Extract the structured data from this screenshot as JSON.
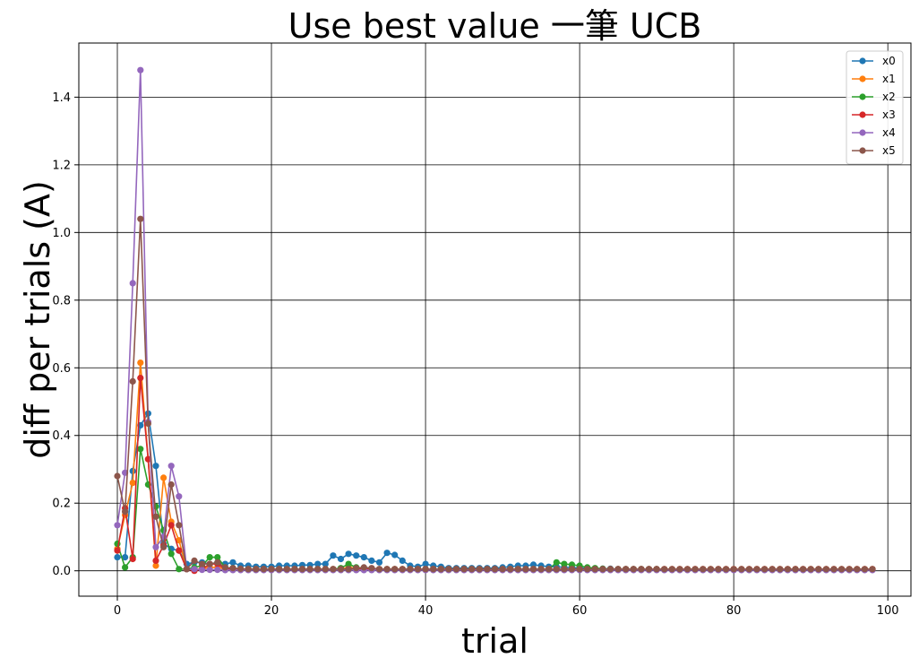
{
  "chart_data": {
    "type": "line",
    "title": "Use best value 一筆 UCB",
    "xlabel": "trial",
    "ylabel": "diff  per  trials (A)",
    "xlim": [
      -5,
      103
    ],
    "ylim": [
      -0.075,
      1.56
    ],
    "x_ticks": [
      0,
      20,
      40,
      60,
      80,
      100
    ],
    "y_ticks": [
      0.0,
      0.2,
      0.4,
      0.6,
      0.8,
      1.0,
      1.2,
      1.4
    ],
    "x_tick_labels": [
      "0",
      "20",
      "40",
      "60",
      "80",
      "100"
    ],
    "y_tick_labels": [
      "0.0",
      "0.2",
      "0.4",
      "0.6",
      "0.8",
      "1.0",
      "1.2",
      "1.4"
    ],
    "grid": true,
    "legend_position": "top-right",
    "x": [
      0,
      1,
      2,
      3,
      4,
      5,
      6,
      7,
      8,
      9,
      10,
      11,
      12,
      13,
      14,
      15,
      16,
      17,
      18,
      19,
      20,
      21,
      22,
      23,
      24,
      25,
      26,
      27,
      28,
      29,
      30,
      31,
      32,
      33,
      34,
      35,
      36,
      37,
      38,
      39,
      40,
      41,
      42,
      43,
      44,
      45,
      46,
      47,
      48,
      49,
      50,
      51,
      52,
      53,
      54,
      55,
      56,
      57,
      58,
      59,
      60,
      61,
      62,
      63,
      64,
      65,
      66,
      67,
      68,
      69,
      70,
      71,
      72,
      73,
      74,
      75,
      76,
      77,
      78,
      79,
      80,
      81,
      82,
      83,
      84,
      85,
      86,
      87,
      88,
      89,
      90,
      91,
      92,
      93,
      94,
      95,
      96,
      97,
      98
    ],
    "series": [
      {
        "name": "x0",
        "color": "#1f77b4",
        "values": [
          0.04,
          0.04,
          0.295,
          0.43,
          0.465,
          0.31,
          0.08,
          0.065,
          0.06,
          0.02,
          0.025,
          0.025,
          0.02,
          0.025,
          0.02,
          0.025,
          0.015,
          0.015,
          0.012,
          0.012,
          0.012,
          0.015,
          0.015,
          0.015,
          0.017,
          0.017,
          0.02,
          0.02,
          0.045,
          0.035,
          0.05,
          0.045,
          0.04,
          0.03,
          0.025,
          0.053,
          0.047,
          0.03,
          0.015,
          0.012,
          0.02,
          0.015,
          0.012,
          0.008,
          0.008,
          0.008,
          0.008,
          0.008,
          0.008,
          0.008,
          0.01,
          0.012,
          0.015,
          0.015,
          0.018,
          0.015,
          0.012,
          0.012,
          0.01,
          0.01,
          0.008,
          0.008,
          0.007,
          0.006,
          0.006,
          0.005,
          0.005,
          0.005,
          0.005,
          0.005,
          0.005,
          0.004,
          0.004,
          0.004,
          0.004,
          0.004,
          0.004,
          0.004,
          0.004,
          0.004,
          0.003,
          0.003,
          0.003,
          0.003,
          0.003,
          0.003,
          0.003,
          0.003,
          0.003,
          0.003,
          0.003,
          0.003,
          0.003,
          0.003,
          0.003,
          0.003,
          0.003,
          0.003,
          0.003
        ]
      },
      {
        "name": "x1",
        "color": "#ff7f0e",
        "values": [
          0.065,
          0.165,
          0.26,
          0.615,
          0.33,
          0.015,
          0.275,
          0.145,
          0.09,
          0.005,
          0.005,
          0.005,
          0.01,
          0.01,
          0.005,
          0.005,
          0.005,
          0.005,
          0.005,
          0.005,
          0.005,
          0.005,
          0.005,
          0.005,
          0.005,
          0.005,
          0.005,
          0.005,
          0.005,
          0.005,
          0.01,
          0.008,
          0.008,
          0.005,
          0.005,
          0.005,
          0.005,
          0.005,
          0.005,
          0.005,
          0.005,
          0.005,
          0.005,
          0.005,
          0.005,
          0.005,
          0.005,
          0.005,
          0.005,
          0.005,
          0.005,
          0.005,
          0.005,
          0.005,
          0.005,
          0.005,
          0.005,
          0.005,
          0.005,
          0.005,
          0.005,
          0.005,
          0.005,
          0.005,
          0.005,
          0.005,
          0.005,
          0.005,
          0.005,
          0.005,
          0.005,
          0.005,
          0.005,
          0.005,
          0.005,
          0.005,
          0.005,
          0.005,
          0.005,
          0.005,
          0.005,
          0.005,
          0.005,
          0.005,
          0.005,
          0.005,
          0.005,
          0.005,
          0.005,
          0.005,
          0.005,
          0.005,
          0.005,
          0.005,
          0.005,
          0.005,
          0.005,
          0.005,
          0.005
        ]
      },
      {
        "name": "x2",
        "color": "#2ca02c",
        "values": [
          0.08,
          0.01,
          0.04,
          0.36,
          0.255,
          0.19,
          0.12,
          0.05,
          0.005,
          0.005,
          0.01,
          0.015,
          0.04,
          0.04,
          0.01,
          0.008,
          0.005,
          0.005,
          0.005,
          0.005,
          0.005,
          0.005,
          0.005,
          0.005,
          0.005,
          0.005,
          0.005,
          0.005,
          0.005,
          0.008,
          0.02,
          0.01,
          0.008,
          0.006,
          0.005,
          0.005,
          0.005,
          0.005,
          0.005,
          0.005,
          0.005,
          0.005,
          0.005,
          0.005,
          0.005,
          0.005,
          0.005,
          0.005,
          0.005,
          0.005,
          0.005,
          0.005,
          0.005,
          0.005,
          0.005,
          0.005,
          0.005,
          0.025,
          0.02,
          0.018,
          0.015,
          0.01,
          0.008,
          0.006,
          0.005,
          0.005,
          0.005,
          0.005,
          0.005,
          0.005,
          0.005,
          0.004,
          0.004,
          0.004,
          0.004,
          0.004,
          0.004,
          0.004,
          0.004,
          0.004,
          0.004,
          0.004,
          0.004,
          0.004,
          0.004,
          0.004,
          0.004,
          0.004,
          0.004,
          0.004,
          0.004,
          0.004,
          0.004,
          0.004,
          0.004,
          0.004,
          0.004,
          0.004,
          0.004
        ]
      },
      {
        "name": "x3",
        "color": "#d62728",
        "values": [
          0.06,
          0.185,
          0.035,
          0.57,
          0.33,
          0.03,
          0.075,
          0.135,
          0.06,
          0.005,
          0.0,
          0.005,
          0.02,
          0.02,
          0.005,
          0.005,
          0.005,
          0.005,
          0.005,
          0.005,
          0.005,
          0.005,
          0.005,
          0.005,
          0.005,
          0.005,
          0.005,
          0.005,
          0.005,
          0.005,
          0.005,
          0.005,
          0.005,
          0.005,
          0.005,
          0.005,
          0.005,
          0.005,
          0.005,
          0.005,
          0.005,
          0.005,
          0.005,
          0.005,
          0.005,
          0.005,
          0.005,
          0.005,
          0.005,
          0.005,
          0.005,
          0.005,
          0.005,
          0.005,
          0.005,
          0.005,
          0.005,
          0.005,
          0.005,
          0.005,
          0.005,
          0.005,
          0.005,
          0.005,
          0.005,
          0.005,
          0.005,
          0.005,
          0.005,
          0.005,
          0.005,
          0.005,
          0.005,
          0.005,
          0.005,
          0.005,
          0.005,
          0.005,
          0.005,
          0.005,
          0.005,
          0.005,
          0.005,
          0.005,
          0.005,
          0.005,
          0.005,
          0.005,
          0.005,
          0.005,
          0.005,
          0.005,
          0.005,
          0.005,
          0.005,
          0.005,
          0.005,
          0.005,
          0.005
        ]
      },
      {
        "name": "x4",
        "color": "#9467bd",
        "values": [
          0.135,
          0.29,
          0.85,
          1.48,
          0.44,
          0.07,
          0.1,
          0.31,
          0.22,
          0.005,
          0.005,
          0.003,
          0.003,
          0.003,
          0.002,
          0.002,
          0.002,
          0.002,
          0.002,
          0.002,
          0.002,
          0.002,
          0.002,
          0.002,
          0.002,
          0.002,
          0.002,
          0.002,
          0.002,
          0.002,
          0.002,
          0.002,
          0.002,
          0.002,
          0.002,
          0.002,
          0.002,
          0.002,
          0.002,
          0.002,
          0.002,
          0.002,
          0.002,
          0.002,
          0.002,
          0.002,
          0.002,
          0.002,
          0.002,
          0.002,
          0.002,
          0.002,
          0.002,
          0.002,
          0.002,
          0.002,
          0.002,
          0.002,
          0.002,
          0.002,
          0.002,
          0.002,
          0.002,
          0.002,
          0.002,
          0.002,
          0.002,
          0.002,
          0.002,
          0.002,
          0.002,
          0.002,
          0.002,
          0.002,
          0.002,
          0.002,
          0.002,
          0.002,
          0.002,
          0.002,
          0.002,
          0.002,
          0.002,
          0.002,
          0.002,
          0.002,
          0.002,
          0.002,
          0.002,
          0.002,
          0.002,
          0.002,
          0.002,
          0.002,
          0.002,
          0.002,
          0.002,
          0.002,
          0.002
        ]
      },
      {
        "name": "x5",
        "color": "#8c564b",
        "values": [
          0.28,
          0.175,
          0.56,
          1.04,
          0.435,
          0.16,
          0.07,
          0.255,
          0.135,
          0.005,
          0.03,
          0.02,
          0.02,
          0.025,
          0.01,
          0.008,
          0.006,
          0.005,
          0.005,
          0.005,
          0.005,
          0.005,
          0.005,
          0.005,
          0.005,
          0.005,
          0.005,
          0.005,
          0.005,
          0.005,
          0.005,
          0.008,
          0.01,
          0.008,
          0.005,
          0.005,
          0.005,
          0.005,
          0.005,
          0.005,
          0.005,
          0.005,
          0.005,
          0.005,
          0.005,
          0.005,
          0.005,
          0.005,
          0.005,
          0.005,
          0.005,
          0.005,
          0.005,
          0.005,
          0.005,
          0.005,
          0.005,
          0.005,
          0.005,
          0.005,
          0.005,
          0.005,
          0.005,
          0.005,
          0.005,
          0.005,
          0.005,
          0.005,
          0.005,
          0.005,
          0.005,
          0.005,
          0.005,
          0.005,
          0.005,
          0.005,
          0.005,
          0.005,
          0.005,
          0.005,
          0.005,
          0.005,
          0.005,
          0.005,
          0.005,
          0.005,
          0.005,
          0.005,
          0.005,
          0.005,
          0.005,
          0.005,
          0.005,
          0.005,
          0.005,
          0.005,
          0.005,
          0.005,
          0.005
        ]
      }
    ]
  }
}
